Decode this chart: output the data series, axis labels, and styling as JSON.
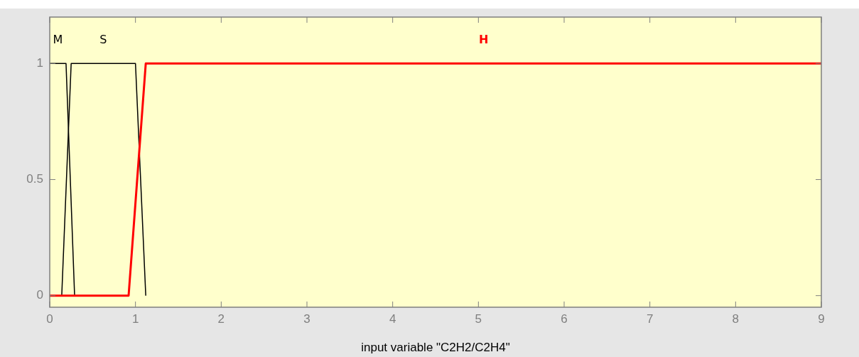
{
  "chart_data": {
    "type": "line",
    "xlabel": "input variable \"C2H2/C2H4\"",
    "xlim": [
      0,
      9
    ],
    "xticks": [
      0,
      1,
      2,
      3,
      4,
      5,
      6,
      7,
      8,
      9
    ],
    "ylim": [
      -0.05,
      1.2
    ],
    "yticks": [
      0,
      0.5,
      1
    ],
    "grid": false,
    "series": [
      {
        "name": "M",
        "color": "#000000",
        "x": [
          0,
          0.19,
          0.29
        ],
        "values": [
          1,
          1,
          0
        ]
      },
      {
        "name": "S",
        "color": "#000000",
        "x": [
          0.14,
          0.25,
          1.0,
          1.12
        ],
        "values": [
          0,
          1,
          1,
          0
        ]
      },
      {
        "name": "H",
        "color": "#ff0000",
        "x": [
          0,
          0.92,
          1.12,
          9
        ],
        "values": [
          0,
          0,
          1,
          1
        ]
      }
    ]
  }
}
